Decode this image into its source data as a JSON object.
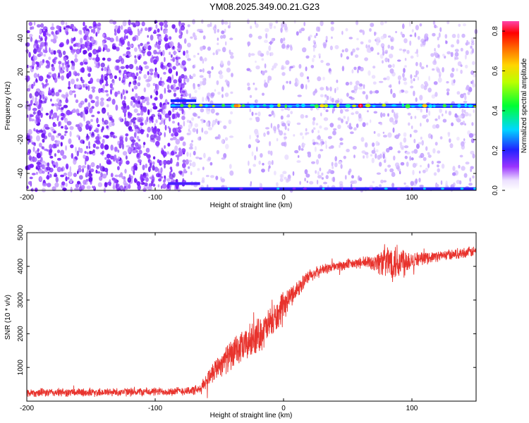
{
  "title": "YM08.2025.349.00.21.G23",
  "chart_data": [
    {
      "type": "heatmap",
      "title": "YM08.2025.349.00.21.G23",
      "xlabel": "Height of straight line (km)",
      "ylabel": "Frequency (Hz)",
      "xlim": [
        -200,
        150
      ],
      "ylim": [
        -50,
        50
      ],
      "xticks": [
        -200,
        -100,
        0,
        100
      ],
      "xtick_labels": [
        "-200",
        "-100",
        "0",
        "100"
      ],
      "yticks": [
        -40,
        -20,
        0,
        20,
        40
      ],
      "ytick_labels": [
        "-40",
        "-20",
        "0",
        "20",
        "40"
      ],
      "colorbar": {
        "label": "Normalized spectral amplitude",
        "range": [
          0.0,
          0.85
        ],
        "ticks": [
          0.0,
          0.2,
          0.4,
          0.6,
          0.8
        ],
        "tick_labels": [
          "0.0",
          "0.2",
          "0.4",
          "0.6",
          "0.8"
        ],
        "colormap": "rainbow (white-violet-blue-cyan-green-yellow-orange-red-magenta)"
      },
      "features": [
        {
          "name": "dense noise region",
          "x_range": [
            -200,
            -75
          ],
          "amplitude": 0.05
        },
        {
          "name": "sparse noise region",
          "x_range": [
            -75,
            150
          ],
          "amplitude": 0.02
        },
        {
          "name": "empty gap",
          "x_range": [
            -40,
            -28
          ]
        },
        {
          "name": "carrier line",
          "frequency": 0,
          "x_range": [
            -88,
            150
          ],
          "peak_x": 60,
          "peak_amplitude": 0.85
        },
        {
          "name": "aliased line",
          "frequency": -49,
          "x_range": [
            -65,
            150
          ],
          "peak_amplitude": 0.12
        }
      ]
    },
    {
      "type": "line",
      "xlabel": "Height of straight line (km)",
      "ylabel": "SNR (10 * v/v)",
      "xlim": [
        -200,
        150
      ],
      "ylim": [
        0,
        5000
      ],
      "xticks": [
        -200,
        -100,
        0,
        100
      ],
      "xtick_labels": [
        "-200",
        "-100",
        "0",
        "100"
      ],
      "yticks": [
        1000,
        2000,
        3000,
        4000,
        5000
      ],
      "ytick_labels": [
        "1000",
        "2000",
        "3000",
        "4000",
        "5000"
      ],
      "color": "#e8332d",
      "x": [
        -200,
        -150,
        -100,
        -80,
        -65,
        -55,
        -45,
        -35,
        -25,
        -15,
        -5,
        0,
        5,
        10,
        20,
        30,
        40,
        50,
        60,
        70,
        80,
        90,
        100,
        110,
        120,
        130,
        140,
        150
      ],
      "y": [
        250,
        260,
        280,
        300,
        330,
        900,
        1250,
        1500,
        1800,
        2100,
        2500,
        2800,
        3100,
        3300,
        3700,
        3900,
        4000,
        4050,
        4100,
        4120,
        4150,
        4150,
        4200,
        4250,
        4300,
        4350,
        4400,
        4450
      ],
      "noise_amplitude": [
        120,
        120,
        120,
        120,
        150,
        300,
        400,
        450,
        500,
        500,
        450,
        400,
        300,
        250,
        200,
        150,
        150,
        150,
        150,
        250,
        500,
        600,
        250,
        150,
        150,
        150,
        150,
        150
      ]
    }
  ]
}
